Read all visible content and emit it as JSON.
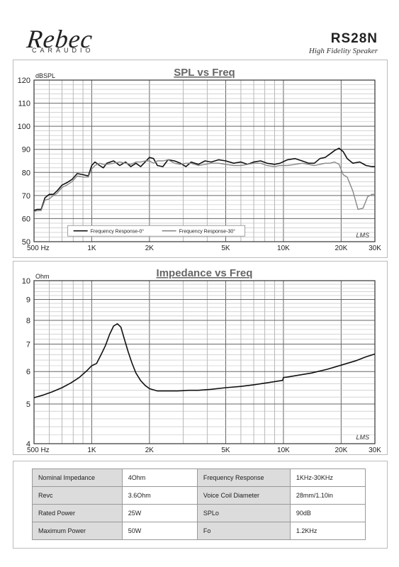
{
  "header": {
    "brand": "Rebec",
    "brand_sub": "CARAUDIO",
    "model": "RS28N",
    "tagline": "High Fidelity Speaker"
  },
  "chart_data": [
    {
      "type": "line",
      "title": "SPL vs Freq",
      "ylabel": "dBSPL",
      "xscale": "log",
      "xlim": [
        500,
        30000
      ],
      "ylim": [
        50,
        120
      ],
      "yticks": [
        50,
        60,
        70,
        80,
        90,
        100,
        110,
        120
      ],
      "xtick_labels": [
        {
          "x": 500,
          "label": "500  Hz"
        },
        {
          "x": 1000,
          "label": "1K"
        },
        {
          "x": 2000,
          "label": "2K"
        },
        {
          "x": 5000,
          "label": "5K"
        },
        {
          "x": 10000,
          "label": "10K"
        },
        {
          "x": 20000,
          "label": "20K"
        },
        {
          "x": 30000,
          "label": "30K"
        }
      ],
      "grid": true,
      "legend_position": "bottom-center",
      "watermark": "LMS",
      "series": [
        {
          "name": "Frequency Response-0°",
          "color": "#111111",
          "x": [
            500,
            520,
            545,
            570,
            600,
            630,
            660,
            700,
            740,
            790,
            840,
            900,
            960,
            1000,
            1040,
            1100,
            1150,
            1200,
            1300,
            1400,
            1500,
            1600,
            1700,
            1800,
            1900,
            2000,
            2100,
            2200,
            2350,
            2500,
            2700,
            2900,
            3100,
            3300,
            3600,
            3900,
            4200,
            4600,
            5000,
            5500,
            6000,
            6500,
            7000,
            7600,
            8200,
            9000,
            9600,
            10500,
            11500,
            12500,
            13500,
            14500,
            15500,
            16500,
            17500,
            18500,
            19500,
            20500,
            21500,
            23000,
            25000,
            27000,
            29000,
            30000
          ],
          "y": [
            63.5,
            64,
            64,
            69,
            70.5,
            70.5,
            72,
            74.5,
            75.5,
            77,
            79.5,
            79,
            78.5,
            83,
            84.5,
            83,
            82,
            84,
            85,
            83,
            84.5,
            82.5,
            84,
            82.5,
            84.5,
            86.5,
            86,
            83,
            82.5,
            85.5,
            85,
            84,
            82.5,
            84.5,
            83.5,
            85,
            84.5,
            85.5,
            85,
            84,
            84.5,
            83.5,
            84.5,
            85,
            84,
            83.5,
            84,
            85.5,
            86,
            85,
            84,
            84,
            86,
            86.5,
            88,
            89.5,
            90.5,
            89,
            86,
            84,
            84.5,
            83,
            82.5,
            82.5
          ]
        },
        {
          "name": "Frequency Response-30°",
          "color": "#888888",
          "x": [
            500,
            520,
            545,
            570,
            600,
            630,
            660,
            700,
            740,
            790,
            840,
            900,
            960,
            1000,
            1040,
            1100,
            1150,
            1200,
            1300,
            1400,
            1500,
            1600,
            1700,
            1800,
            1900,
            2000,
            2100,
            2200,
            2350,
            2500,
            2700,
            2900,
            3100,
            3300,
            3600,
            3900,
            4200,
            4600,
            5000,
            5500,
            6000,
            6500,
            7000,
            7600,
            8200,
            9000,
            9600,
            10500,
            11500,
            12500,
            13500,
            14500,
            15500,
            16500,
            17500,
            18500,
            19500,
            20500,
            21500,
            23000,
            24500,
            26000,
            27500,
            29000,
            30000
          ],
          "y": [
            63,
            63.5,
            63.5,
            68,
            68.5,
            70,
            71,
            73.5,
            74.5,
            76,
            78.5,
            78,
            78,
            81.5,
            83,
            84,
            83.5,
            83.5,
            84,
            84.5,
            84,
            83.5,
            84.5,
            84.5,
            85,
            85,
            84,
            85,
            85,
            85.5,
            84,
            83.5,
            84,
            84,
            83,
            83.5,
            84,
            84,
            83.5,
            83,
            83,
            83.5,
            84,
            84,
            83,
            82.5,
            83,
            83,
            83.5,
            84,
            83.5,
            83,
            83.5,
            84,
            84,
            84.5,
            83.5,
            79,
            78,
            72,
            64,
            64.5,
            69.5,
            70.5,
            70.5
          ]
        }
      ]
    },
    {
      "type": "line",
      "title": "Impedance vs Freq",
      "ylabel": "Ohm",
      "xscale": "log",
      "yscale": "log",
      "xlim": [
        500,
        30000
      ],
      "ylim": [
        4,
        10
      ],
      "yticks": [
        4,
        5,
        6,
        7,
        8,
        9,
        10
      ],
      "xtick_labels": [
        {
          "x": 500,
          "label": "500  Hz"
        },
        {
          "x": 1000,
          "label": "1K"
        },
        {
          "x": 2000,
          "label": "2K"
        },
        {
          "x": 5000,
          "label": "5K"
        },
        {
          "x": 10000,
          "label": "10K"
        },
        {
          "x": 20000,
          "label": "20K"
        },
        {
          "x": 30000,
          "label": "30K"
        }
      ],
      "grid": true,
      "watermark": "LMS",
      "series": [
        {
          "color": "#111111",
          "x": [
            500,
            560,
            620,
            700,
            780,
            860,
            940,
            1000,
            1060,
            1120,
            1180,
            1240,
            1300,
            1360,
            1420,
            1480,
            1550,
            1620,
            1700,
            1800,
            1900,
            2000,
            2200,
            2500,
            2800,
            3200,
            3600,
            4200,
            5000,
            6000,
            7000,
            8000,
            9000,
            9900,
            10000,
            10500,
            12000,
            14000,
            17000,
            20000,
            24000,
            27000,
            30000
          ],
          "y": [
            5.18,
            5.26,
            5.35,
            5.48,
            5.63,
            5.8,
            6.02,
            6.2,
            6.28,
            6.6,
            6.95,
            7.4,
            7.75,
            7.85,
            7.7,
            7.2,
            6.7,
            6.3,
            5.95,
            5.7,
            5.55,
            5.45,
            5.38,
            5.38,
            5.38,
            5.4,
            5.4,
            5.43,
            5.48,
            5.52,
            5.57,
            5.62,
            5.67,
            5.71,
            5.8,
            5.82,
            5.88,
            5.95,
            6.08,
            6.22,
            6.38,
            6.52,
            6.62
          ]
        }
      ]
    }
  ],
  "specs": {
    "rows": [
      {
        "label1": "Nominal Impedance",
        "value1": "4Ohm",
        "label2": "Frequency Response",
        "value2": "1KHz-30KHz"
      },
      {
        "label1": "Revc",
        "value1": "3.6Ohm",
        "label2": "Voice Coil Diameter",
        "value2": "28mm/1.10in"
      },
      {
        "label1": "Rated Power",
        "value1": "25W",
        "label2": "SPLo",
        "value2": "90dB"
      },
      {
        "label1": "Maximum Power",
        "value1": "50W",
        "label2": "Fo",
        "value2": "1.2KHz"
      }
    ]
  }
}
